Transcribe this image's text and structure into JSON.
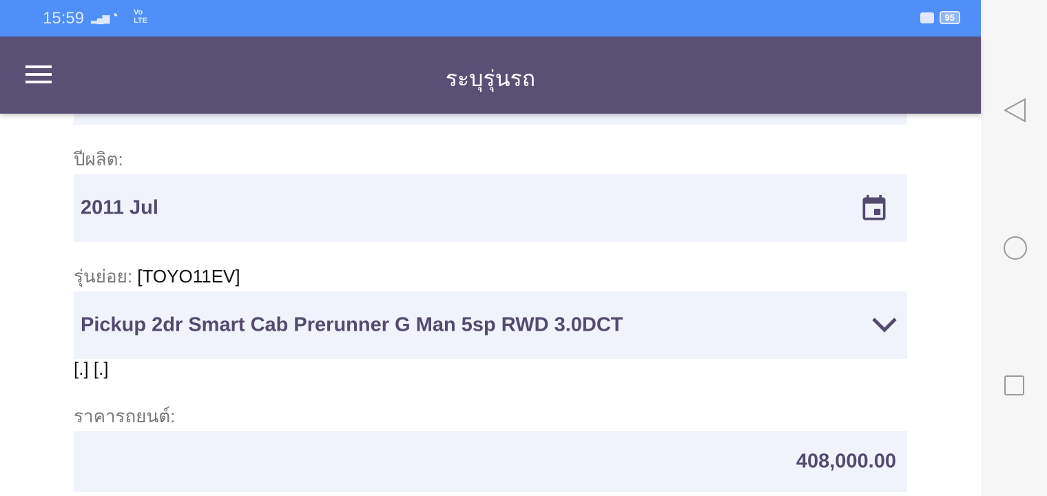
{
  "status_bar": {
    "time": "15:59",
    "battery": "95",
    "volte": "Vo LTE"
  },
  "app_bar": {
    "title": "ระบุรุ่นรถ"
  },
  "form": {
    "year_label": "ปีผลิต:",
    "year_value": "2011 Jul",
    "submodel_label": "รุ่นย่อย:",
    "submodel_code": "[TOYO11EV]",
    "submodel_value": "Pickup 2dr Smart Cab Prerunner G Man 5sp RWD 3.0DCT",
    "extra": "[.] [.]",
    "price_label": "ราคารถยนต์:",
    "price_value": "408,000.00"
  },
  "colors": {
    "status": "#4f8ff7",
    "appbar": "#5a4f74",
    "field_bg": "#f0f3fb",
    "field_text": "#544a6e"
  }
}
